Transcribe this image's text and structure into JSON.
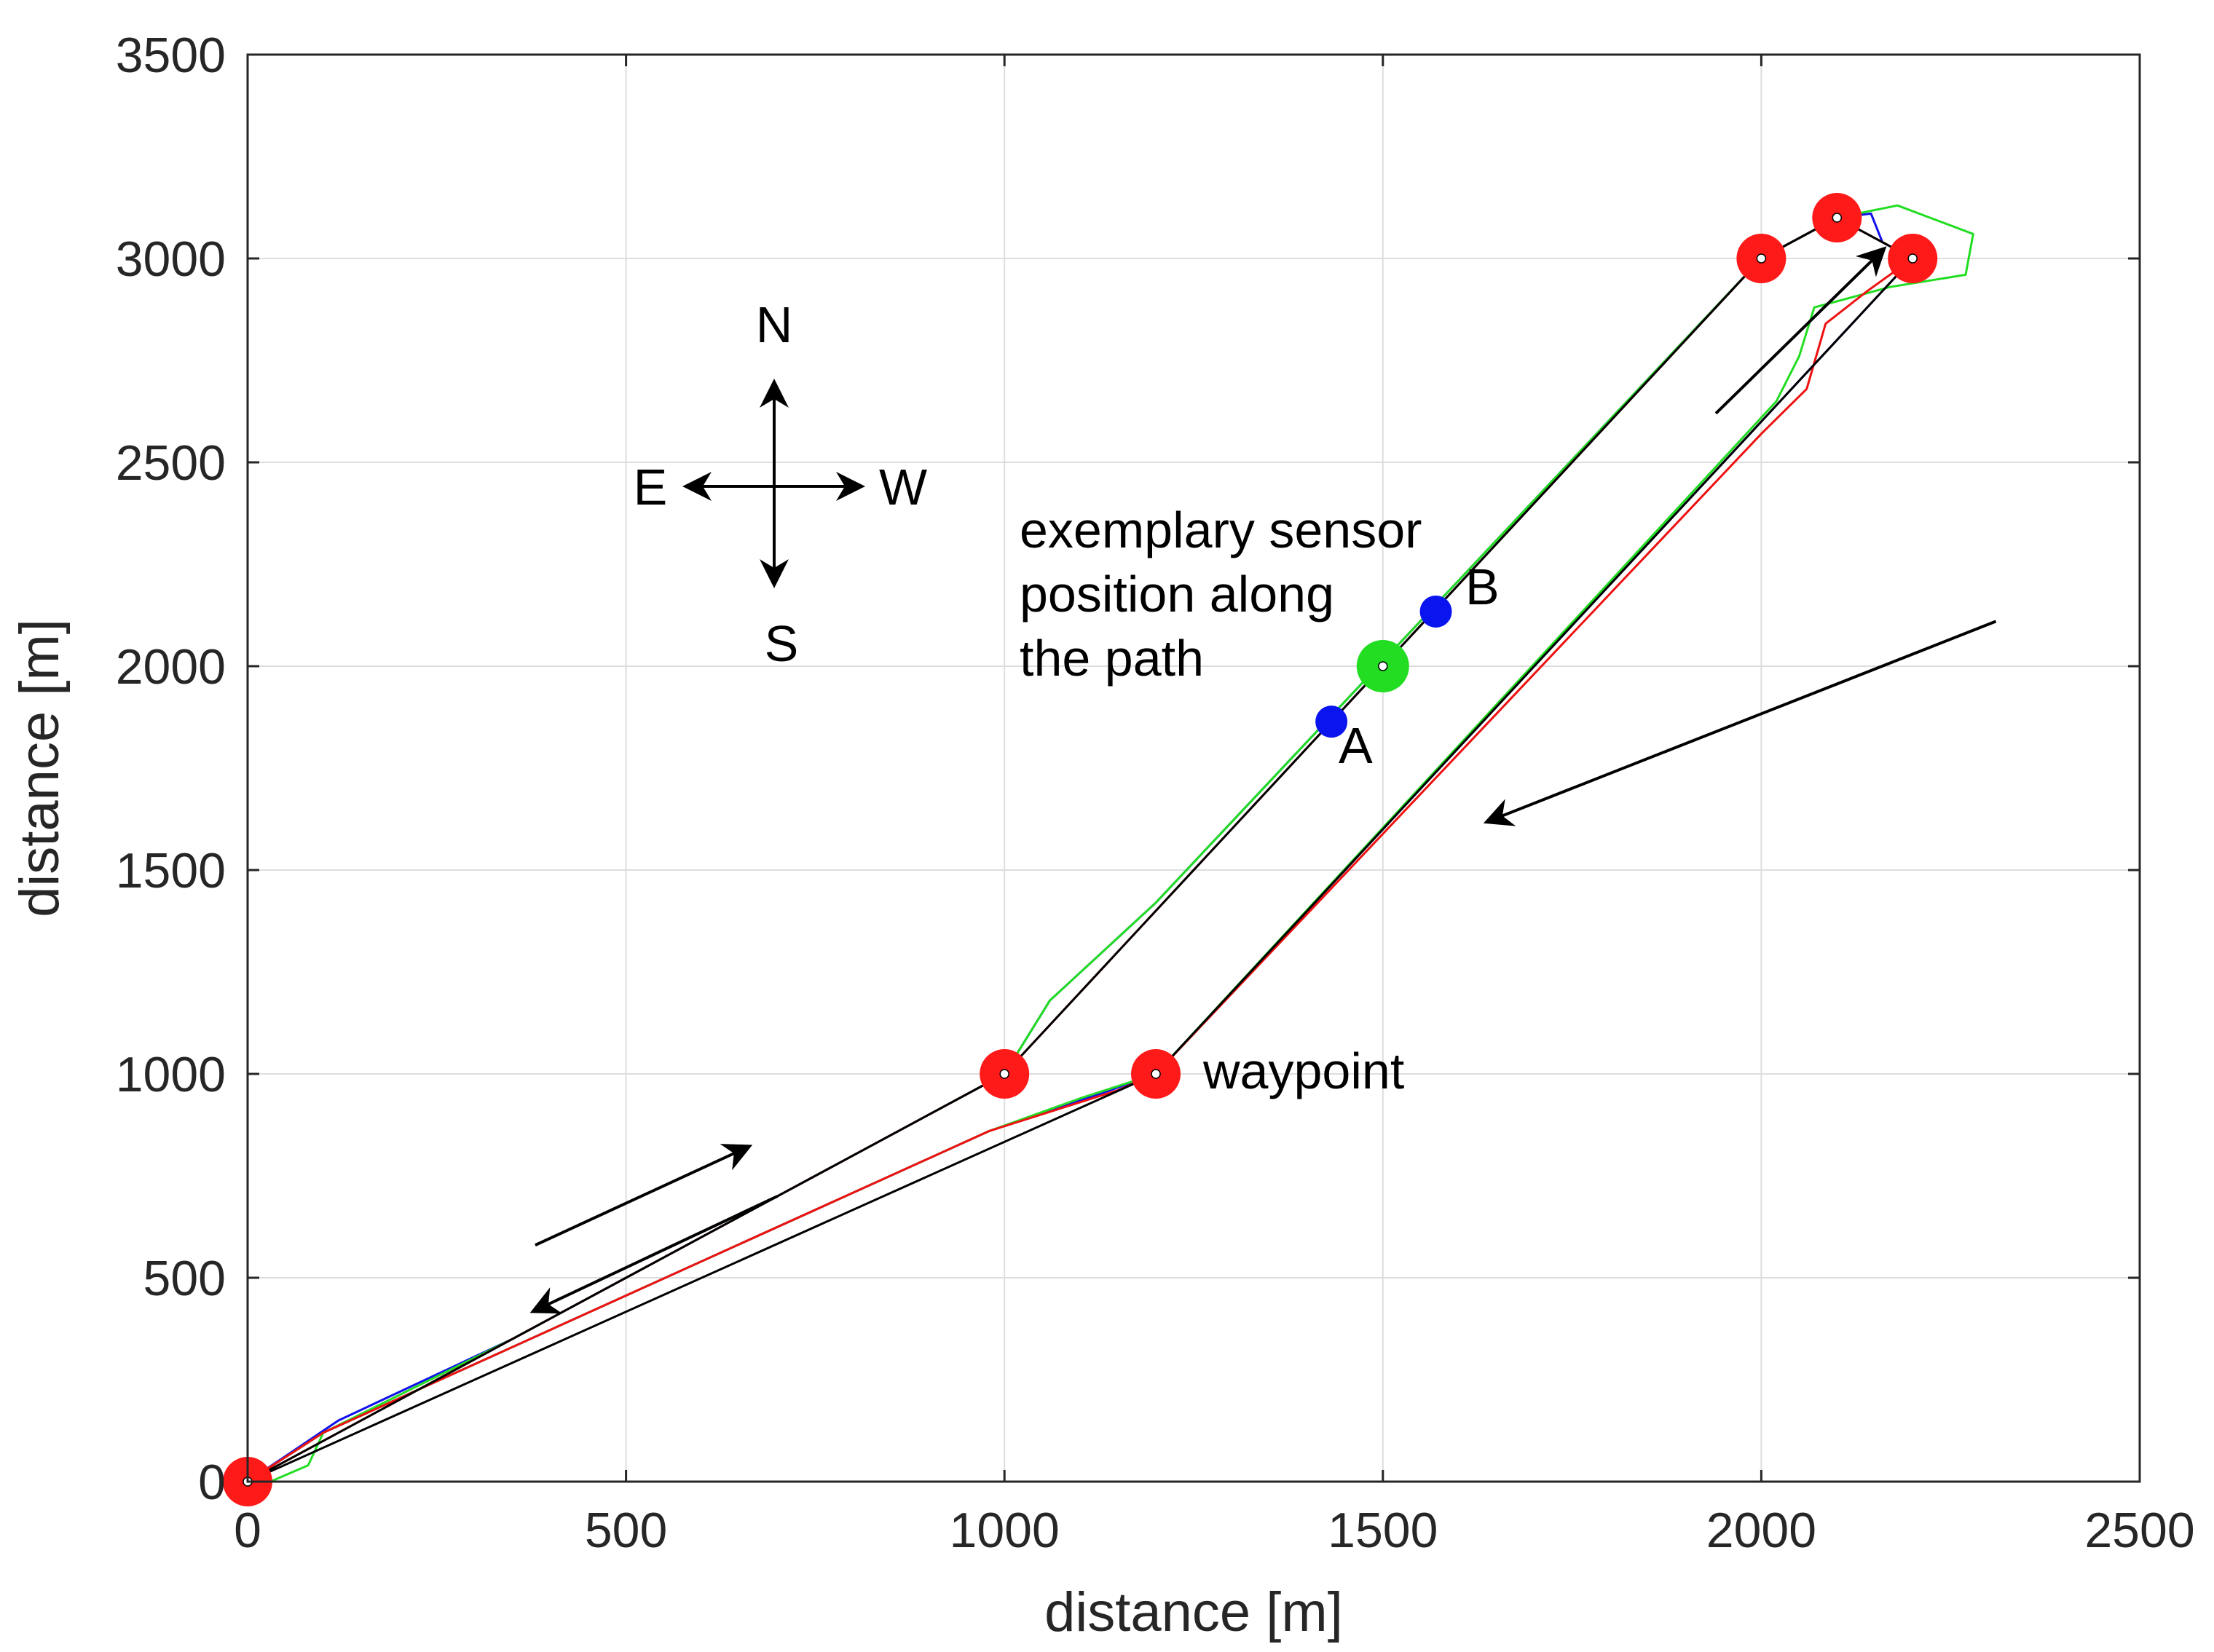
{
  "chart_data": {
    "type": "line",
    "title": "",
    "xlabel": "distance [m]",
    "ylabel": "distance [m]",
    "xlim": [
      0,
      2500
    ],
    "ylim": [
      0,
      3500
    ],
    "xticks": [
      0,
      500,
      1000,
      1500,
      2000,
      2500
    ],
    "yticks": [
      0,
      500,
      1000,
      1500,
      2000,
      2500,
      3000,
      3500
    ],
    "grid": true,
    "waypoints": [
      {
        "x": 0,
        "y": 0
      },
      {
        "x": 1000,
        "y": 1000
      },
      {
        "x": 2000,
        "y": 3000
      },
      {
        "x": 2100,
        "y": 3100
      },
      {
        "x": 2200,
        "y": 3000
      },
      {
        "x": 1200,
        "y": 1000
      }
    ],
    "series": [
      {
        "name": "planned path",
        "color": "#000000",
        "points": [
          [
            0,
            0
          ],
          [
            1000,
            1000
          ],
          [
            2000,
            3000
          ],
          [
            2100,
            3100
          ],
          [
            2200,
            3000
          ],
          [
            1200,
            1000
          ],
          [
            0,
            0
          ]
        ]
      },
      {
        "name": "blue track",
        "color": "#1010ee",
        "points": [
          [
            0,
            0
          ],
          [
            120,
            150
          ],
          [
            350,
            350
          ],
          [
            1000,
            1000
          ],
          [
            1060,
            1180
          ],
          [
            1200,
            1420
          ],
          [
            2000,
            3000
          ],
          [
            2100,
            3100
          ],
          [
            2145,
            3110
          ],
          [
            2160,
            3040
          ],
          [
            2200,
            3000
          ],
          [
            1200,
            1000
          ],
          [
            1140,
            960
          ],
          [
            980,
            860
          ],
          [
            100,
            120
          ],
          [
            0,
            0
          ]
        ]
      },
      {
        "name": "green track",
        "color": "#22dd22",
        "points": [
          [
            0,
            0
          ],
          [
            100,
            120
          ],
          [
            350,
            350
          ],
          [
            1000,
            1000
          ],
          [
            1060,
            1180
          ],
          [
            1200,
            1420
          ],
          [
            2000,
            3000
          ],
          [
            2100,
            3100
          ],
          [
            2180,
            3130
          ],
          [
            2280,
            3060
          ],
          [
            2270,
            2960
          ],
          [
            2170,
            2930
          ],
          [
            2070,
            2880
          ],
          [
            2050,
            2760
          ],
          [
            2020,
            2650
          ],
          [
            1200,
            1000
          ],
          [
            1100,
            940
          ],
          [
            980,
            860
          ],
          [
            100,
            120
          ],
          [
            80,
            40
          ],
          [
            30,
            0
          ]
        ]
      },
      {
        "name": "red track",
        "color": "#ee1111",
        "points": [
          [
            0,
            0
          ],
          [
            350,
            350
          ],
          [
            1000,
            1000
          ],
          [
            2000,
            3000
          ],
          [
            2100,
            3100
          ],
          [
            2200,
            3000
          ],
          [
            2140,
            2920
          ],
          [
            2085,
            2840
          ],
          [
            2060,
            2680
          ],
          [
            2000,
            2570
          ],
          [
            1200,
            1000
          ],
          [
            1150,
            960
          ],
          [
            980,
            860
          ],
          [
            100,
            120
          ],
          [
            0,
            0
          ]
        ]
      }
    ],
    "sensor_points": [
      {
        "label": "A",
        "x": 1432,
        "y": 1864,
        "color": "#0a14ee"
      },
      {
        "label": "B",
        "x": 1570,
        "y": 2134,
        "color": "#0a14ee"
      }
    ],
    "sensor_position": {
      "x": 1500,
      "y": 2000,
      "color": "#22dd22"
    },
    "annotations": {
      "sensor_text": [
        "exemplary sensor",
        "position along",
        "the path"
      ],
      "waypoint_text": "waypoint",
      "compass": {
        "north": "N",
        "south": "S",
        "east": "E",
        "west": "W"
      }
    },
    "direction_arrows": [
      {
        "from": [
          380,
          580
        ],
        "to": [
          660,
          820
        ]
      },
      {
        "from": [
          1940,
          2620
        ],
        "to": [
          2160,
          3020
        ]
      },
      {
        "from": [
          2310,
          2110
        ],
        "to": [
          1640,
          1620
        ]
      },
      {
        "from": [
          700,
          700
        ],
        "to": [
          380,
          420
        ]
      }
    ],
    "colors": {
      "waypoint": "#ff1a1a",
      "path": "#000000"
    }
  }
}
